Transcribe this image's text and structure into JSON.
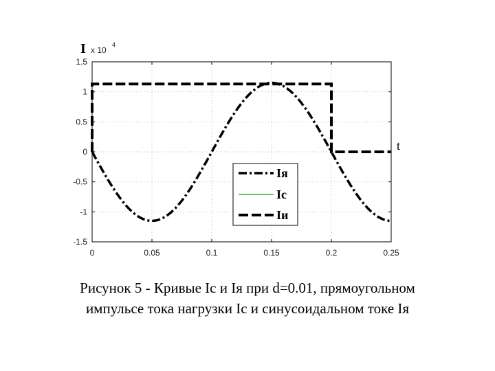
{
  "caption": {
    "line1": "Рисунок 5 - Кривые Ic и Iя при d=0.01, прямоугольном",
    "line2": "импульсе тока нагрузки Ic и синусоидальном токе Iя"
  },
  "chart_data": {
    "type": "line",
    "ylabel": "I",
    "y_scale_label": "x 10",
    "y_scale_exponent": "4",
    "xlabel": "t",
    "xlim": [
      0,
      0.25
    ],
    "ylim": [
      -1.5,
      1.5
    ],
    "x_ticks": [
      "0",
      "0.05",
      "0.1",
      "0.15",
      "0.2",
      "0.25"
    ],
    "y_ticks": [
      "1.5",
      "1",
      "0.5",
      "0",
      "-0.5",
      "-1",
      "-1.5"
    ],
    "grid": true,
    "legend_position": "lower-right",
    "series": [
      {
        "name": "Iя",
        "style": "dash-dot",
        "color": "#000000",
        "function": "-1.15*sin(2*pi*x/0.2)",
        "amplitude": 1.15,
        "period": 0.2
      },
      {
        "name": "Ic",
        "style": "solid",
        "color": "#2e8b2e",
        "x": [],
        "y": []
      },
      {
        "name": "Iи",
        "style": "dashed",
        "color": "#000000",
        "x": [
          0,
          0,
          0.2,
          0.2,
          0.25
        ],
        "y": [
          0,
          1.13,
          1.13,
          0,
          0
        ]
      }
    ]
  }
}
